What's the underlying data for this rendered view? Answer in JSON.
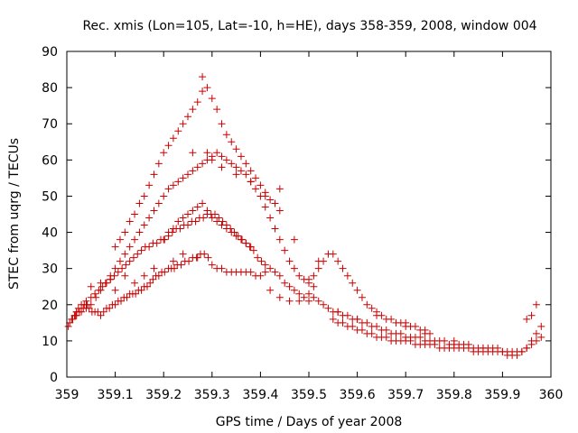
{
  "chart_data": {
    "type": "scatter",
    "title": "Rec. xmis (Lon=105, Lat=-10, h=HE), days 358-359, 2008, window 004",
    "xlabel": "GPS time / Days of year 2008",
    "ylabel": "STEC from uqrg / TECUs",
    "xlim": [
      359,
      360
    ],
    "ylim": [
      0,
      90
    ],
    "x_ticks": [
      "359",
      "359.1",
      "359.2",
      "359.3",
      "359.4",
      "359.5",
      "359.6",
      "359.7",
      "359.8",
      "359.9",
      "360"
    ],
    "y_ticks": [
      "0",
      "10",
      "20",
      "30",
      "40",
      "50",
      "60",
      "70",
      "80",
      "90"
    ],
    "grid": false,
    "legend": "none",
    "marker": "plus",
    "color": "#cc0000",
    "series": [
      {
        "x": [
          359.003,
          359.006,
          359.012,
          359.016,
          359.02,
          359.024,
          359.03,
          359.036,
          359.04,
          359.046,
          359.052,
          359.058,
          359.064,
          359.07,
          359.076,
          359.082,
          359.088,
          359.094,
          359.1,
          359.106,
          359.112,
          359.118,
          359.124,
          359.13,
          359.136,
          359.142,
          359.148,
          359.154,
          359.16,
          359.166,
          359.172,
          359.178,
          359.184,
          359.19,
          359.196,
          359.202,
          359.21,
          359.216,
          359.222,
          359.228,
          359.236,
          359.244,
          359.252,
          359.26,
          359.268,
          359.276,
          359.284,
          359.292,
          359.3,
          359.31,
          359.32,
          359.33,
          359.34,
          359.35,
          359.36,
          359.37,
          359.38,
          359.39,
          359.4,
          359.41
        ],
        "y": [
          14,
          15,
          16,
          17,
          18,
          19,
          20,
          20,
          21,
          19,
          18,
          18,
          18,
          17,
          18,
          19,
          19,
          20,
          20,
          21,
          21,
          22,
          22,
          23,
          23,
          23,
          24,
          24,
          25,
          25,
          26,
          27,
          28,
          28,
          29,
          29,
          30,
          30,
          30,
          31,
          31,
          32,
          32,
          33,
          33,
          34,
          34,
          33,
          31,
          30,
          30,
          29,
          29,
          29,
          29,
          29,
          29,
          28,
          28,
          29
        ]
      },
      {
        "x": [
          359.01,
          359.018,
          359.026,
          359.034,
          359.042,
          359.05,
          359.058,
          359.066,
          359.074,
          359.082,
          359.09,
          359.098,
          359.106,
          359.114,
          359.122,
          359.13,
          359.138,
          359.146,
          359.154,
          359.162,
          359.17,
          359.178,
          359.186,
          359.194,
          359.202,
          359.21,
          359.218,
          359.226,
          359.234,
          359.242,
          359.25,
          359.258,
          359.266,
          359.274,
          359.282,
          359.29,
          359.298,
          359.306,
          359.314,
          359.322,
          359.33,
          359.338,
          359.346,
          359.354,
          359.362,
          359.37,
          359.378,
          359.386,
          359.394,
          359.402,
          359.41,
          359.42,
          359.43,
          359.44,
          359.45,
          359.46,
          359.47,
          359.48,
          359.49,
          359.5
        ],
        "y": [
          16,
          17,
          18,
          19,
          20,
          22,
          23,
          24,
          25,
          26,
          27,
          28,
          29,
          30,
          31,
          32,
          33,
          34,
          35,
          36,
          36,
          37,
          37,
          38,
          38,
          39,
          40,
          41,
          41,
          42,
          42,
          43,
          43,
          44,
          44,
          45,
          45,
          45,
          44,
          43,
          42,
          41,
          40,
          39,
          38,
          37,
          36,
          35,
          33,
          32,
          31,
          30,
          29,
          28,
          26,
          25,
          24,
          23,
          22,
          21
        ]
      },
      {
        "x": [
          359.02,
          359.03,
          359.04,
          359.05,
          359.06,
          359.07,
          359.08,
          359.09,
          359.1,
          359.11,
          359.12,
          359.13,
          359.14,
          359.15,
          359.16,
          359.17,
          359.18,
          359.19,
          359.2,
          359.21,
          359.22,
          359.23,
          359.24,
          359.25,
          359.26,
          359.27,
          359.28,
          359.29,
          359.3,
          359.31,
          359.32,
          359.33,
          359.34,
          359.35,
          359.36,
          359.37,
          359.38,
          359.39,
          359.4,
          359.41,
          359.42,
          359.43,
          359.44,
          359.45,
          359.46,
          359.47,
          359.48,
          359.49,
          359.5,
          359.51
        ],
        "y": [
          17,
          18,
          19,
          20,
          22,
          24,
          26,
          28,
          30,
          32,
          34,
          36,
          38,
          40,
          42,
          44,
          46,
          48,
          50,
          52,
          53,
          54,
          55,
          56,
          57,
          58,
          59,
          60,
          61,
          62,
          61,
          60,
          59,
          58,
          57,
          56,
          54,
          52,
          50,
          47,
          44,
          41,
          38,
          35,
          32,
          30,
          28,
          27,
          26,
          25
        ]
      },
      {
        "x": [
          359.1,
          359.11,
          359.12,
          359.13,
          359.14,
          359.15,
          359.16,
          359.17,
          359.18,
          359.19,
          359.2,
          359.21,
          359.22,
          359.23,
          359.24,
          359.25,
          359.26,
          359.27,
          359.28,
          359.29,
          359.3,
          359.31,
          359.32,
          359.33,
          359.34,
          359.35,
          359.36,
          359.37,
          359.38,
          359.39,
          359.4,
          359.41,
          359.42,
          359.43,
          359.44
        ],
        "y": [
          36,
          38,
          40,
          43,
          45,
          48,
          50,
          53,
          56,
          59,
          62,
          64,
          66,
          68,
          70,
          72,
          74,
          76,
          79,
          80,
          77,
          74,
          70,
          67,
          65,
          63,
          61,
          59,
          57,
          55,
          53,
          51,
          49,
          48,
          46
        ]
      },
      {
        "x": [
          359.2,
          359.21,
          359.22,
          359.23,
          359.24,
          359.25,
          359.26,
          359.27,
          359.28,
          359.29,
          359.3,
          359.31,
          359.32,
          359.33,
          359.34,
          359.35,
          359.36,
          359.37,
          359.38
        ],
        "y": [
          38,
          40,
          41,
          43,
          44,
          45,
          46,
          47,
          48,
          46,
          44,
          43,
          42,
          41,
          40,
          39,
          38,
          37,
          36
        ]
      },
      {
        "x": [
          359.42,
          359.44,
          359.46,
          359.48,
          359.5,
          359.51,
          359.52,
          359.53,
          359.54,
          359.55,
          359.56,
          359.57,
          359.58,
          359.59,
          359.6,
          359.61,
          359.62,
          359.63,
          359.64,
          359.65,
          359.66,
          359.67,
          359.68,
          359.69,
          359.7,
          359.71,
          359.72,
          359.73,
          359.74,
          359.75
        ],
        "y": [
          24,
          22,
          21,
          21,
          27,
          28,
          30,
          32,
          34,
          34,
          32,
          30,
          28,
          26,
          24,
          22,
          20,
          19,
          18,
          17,
          16,
          16,
          15,
          15,
          14,
          14,
          14,
          13,
          13,
          12
        ]
      },
      {
        "x": [
          359.5,
          359.51,
          359.52,
          359.53,
          359.54,
          359.55,
          359.56,
          359.57,
          359.58,
          359.59,
          359.6,
          359.61,
          359.62,
          359.63,
          359.64,
          359.65,
          359.66,
          359.67,
          359.68,
          359.69,
          359.7,
          359.71,
          359.72,
          359.73,
          359.74,
          359.75,
          359.76,
          359.77,
          359.78,
          359.79,
          359.8,
          359.81,
          359.82,
          359.83,
          359.84,
          359.85,
          359.86,
          359.87,
          359.88,
          359.89,
          359.9,
          359.91,
          359.92,
          359.93,
          359.94,
          359.95,
          359.96,
          359.97,
          359.98
        ],
        "y": [
          23,
          22,
          21,
          20,
          19,
          18,
          18,
          17,
          17,
          16,
          16,
          15,
          15,
          14,
          14,
          13,
          13,
          12,
          12,
          12,
          11,
          11,
          11,
          11,
          10,
          10,
          10,
          10,
          10,
          9,
          9,
          9,
          9,
          9,
          8,
          8,
          8,
          8,
          8,
          8,
          7,
          7,
          7,
          7,
          7,
          8,
          9,
          10,
          11
        ]
      },
      {
        "x": [
          359.55,
          359.56,
          359.57,
          359.58,
          359.59,
          359.6,
          359.61,
          359.62,
          359.63,
          359.64,
          359.65,
          359.66,
          359.67,
          359.68,
          359.69,
          359.7,
          359.71,
          359.72,
          359.73,
          359.74,
          359.75,
          359.76,
          359.77,
          359.78,
          359.79,
          359.8,
          359.81,
          359.82,
          359.83,
          359.84,
          359.85,
          359.86,
          359.87,
          359.88,
          359.89,
          359.9,
          359.91,
          359.92,
          359.93,
          359.94,
          359.95,
          359.96,
          359.97,
          359.98
        ],
        "y": [
          16,
          15,
          15,
          14,
          14,
          13,
          13,
          12,
          12,
          11,
          11,
          11,
          10,
          10,
          10,
          10,
          10,
          9,
          9,
          9,
          9,
          9,
          8,
          8,
          8,
          8,
          8,
          8,
          8,
          7,
          7,
          7,
          7,
          7,
          7,
          7,
          6,
          6,
          6,
          7,
          8,
          10,
          12,
          14
        ]
      },
      {
        "x": [
          359.1,
          359.14,
          359.16,
          359.18,
          359.22,
          359.24,
          359.27,
          359.29,
          359.3,
          359.32,
          359.35,
          359.38,
          359.41,
          359.44,
          359.47,
          359.52,
          359.56,
          359.6,
          359.64,
          359.7,
          359.74,
          359.8,
          359.86,
          359.95,
          359.97,
          359.96,
          359.05,
          359.07,
          359.09,
          359.12,
          359.02,
          359.26,
          359.28
        ],
        "y": [
          24,
          26,
          28,
          30,
          32,
          34,
          33,
          62,
          60,
          58,
          56,
          54,
          50,
          52,
          38,
          32,
          18,
          16,
          17,
          15,
          12,
          10,
          8,
          16,
          20,
          17,
          25,
          26,
          27,
          28,
          18,
          62,
          83
        ]
      }
    ]
  }
}
